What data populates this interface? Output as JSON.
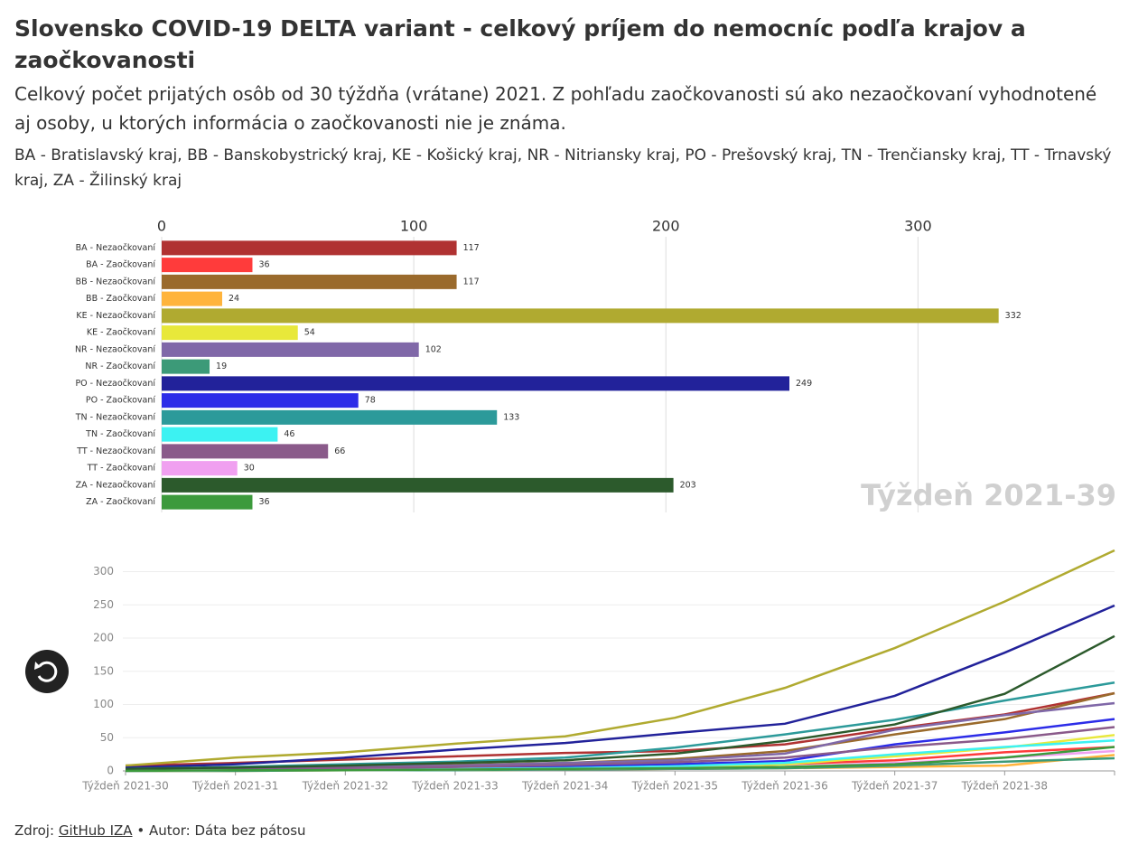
{
  "header": {
    "title": "Slovensko COVID-19 DELTA variant - celkový príjem do nemocníc podľa krajov a zaočkovanosti",
    "subtitle": "Celkový počet prijatých osôb od 30 týždňa (vrátane) 2021. Z pohľadu zaočkovanosti sú ako nezaočkovaní vyhodnotené aj osoby, u ktorých informácia o zaočkovanosti nie je známa.",
    "note": "BA - Bratislavský kraj, BB - Banskobystrický kraj, KE - Košický kraj, NR - Nitriansky kraj, PO - Prešovský kraj, TN - Trenčiansky kraj, TT - Trnavský kraj, ZA - Žilinský kraj"
  },
  "chart_data": [
    {
      "type": "bar",
      "annotation": "Týždeň 2021-39",
      "categories": [
        "BA - Nezaočkovaní",
        "BA - Zaočkovaní",
        "BB - Nezaočkovaní",
        "BB - Zaočkovaní",
        "KE - Nezaočkovaní",
        "KE - Zaočkovaní",
        "NR - Nezaočkovaní",
        "NR - Zaočkovaní",
        "PO - Nezaočkovaní",
        "PO - Zaočkovaní",
        "TN - Nezaočkovaní",
        "TN - Zaočkovaní",
        "TT - Nezaočkovaní",
        "TT - Zaočkovaní",
        "ZA - Nezaočkovaní",
        "ZA - Zaočkovaní"
      ],
      "values": [
        117,
        36,
        117,
        24,
        332,
        54,
        102,
        19,
        249,
        78,
        133,
        46,
        66,
        30,
        203,
        36
      ],
      "colors": [
        "#b03232",
        "#ff3b3b",
        "#9a6a2c",
        "#ffb43c",
        "#b0aa30",
        "#e8e83a",
        "#8068a8",
        "#3c9a78",
        "#22229a",
        "#2c2ce8",
        "#2c9a9a",
        "#3cf2f2",
        "#8a5a8a",
        "#f0a0f0",
        "#2c5a2c",
        "#3c9a3c"
      ],
      "xlim": [
        0,
        340
      ],
      "xticks": [
        0,
        100,
        200,
        300
      ],
      "grid": true
    },
    {
      "type": "line",
      "categories": [
        "Týždeň 2021-30",
        "Týždeň 2021-31",
        "Týždeň 2021-32",
        "Týždeň 2021-33",
        "Týždeň 2021-34",
        "Týždeň 2021-35",
        "Týždeň 2021-36",
        "Týždeň 2021-37",
        "Týždeň 2021-38",
        null
      ],
      "series": [
        {
          "color": "#b03232",
          "values": [
            8,
            12,
            17,
            22,
            27,
            30,
            40,
            64,
            85,
            117
          ]
        },
        {
          "color": "#ff3b3b",
          "values": [
            0,
            1,
            2,
            3,
            4,
            6,
            10,
            16,
            28,
            36
          ]
        },
        {
          "color": "#9a6a2c",
          "values": [
            2,
            4,
            6,
            9,
            12,
            18,
            30,
            55,
            78,
            117
          ]
        },
        {
          "color": "#ffb43c",
          "values": [
            0,
            0,
            1,
            1,
            2,
            3,
            4,
            6,
            8,
            24
          ]
        },
        {
          "color": "#b0aa30",
          "values": [
            8,
            20,
            28,
            41,
            52,
            80,
            125,
            185,
            255,
            332
          ]
        },
        {
          "color": "#e8e83a",
          "values": [
            0,
            1,
            2,
            3,
            4,
            6,
            10,
            22,
            35,
            54
          ]
        },
        {
          "color": "#8068a8",
          "values": [
            2,
            4,
            6,
            8,
            12,
            16,
            26,
            62,
            84,
            102
          ]
        },
        {
          "color": "#3c9a78",
          "values": [
            0,
            0,
            1,
            1,
            2,
            3,
            4,
            8,
            14,
            19
          ]
        },
        {
          "color": "#22229a",
          "values": [
            5,
            10,
            20,
            32,
            42,
            57,
            71,
            113,
            178,
            249
          ]
        },
        {
          "color": "#2c2ce8",
          "values": [
            1,
            2,
            3,
            5,
            7,
            10,
            15,
            40,
            58,
            78
          ]
        },
        {
          "color": "#2c9a9a",
          "values": [
            3,
            6,
            10,
            14,
            20,
            35,
            55,
            77,
            106,
            133
          ]
        },
        {
          "color": "#3cf2f2",
          "values": [
            0,
            1,
            2,
            3,
            4,
            7,
            12,
            25,
            36,
            46
          ]
        },
        {
          "color": "#8a5a8a",
          "values": [
            1,
            2,
            4,
            6,
            9,
            13,
            20,
            36,
            48,
            66
          ]
        },
        {
          "color": "#f0a0f0",
          "values": [
            0,
            1,
            1,
            2,
            3,
            4,
            6,
            12,
            20,
            30
          ]
        },
        {
          "color": "#2c5a2c",
          "values": [
            3,
            5,
            8,
            12,
            16,
            26,
            45,
            70,
            116,
            203
          ]
        },
        {
          "color": "#3c9a3c",
          "values": [
            0,
            1,
            1,
            2,
            3,
            4,
            6,
            10,
            20,
            36
          ]
        }
      ],
      "ylim": [
        0,
        332
      ],
      "yticks": [
        0,
        50,
        100,
        150,
        200,
        250,
        300
      ],
      "grid": true
    }
  ],
  "footer": {
    "source_label": "Zdroj:",
    "source_link": "GitHub IZA",
    "author": "• Autor: Dáta bez pátosu"
  }
}
